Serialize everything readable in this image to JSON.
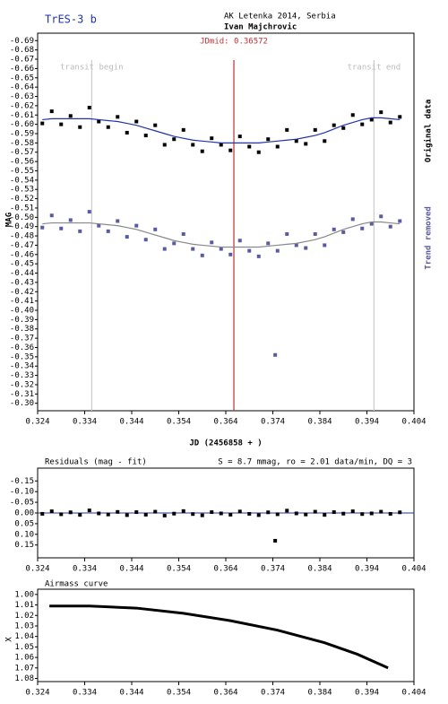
{
  "chart_data": [
    {
      "type": "scatter",
      "title": "TrES-3 b",
      "subtitle": "AK Letenka 2014, Serbia",
      "author": "Ivan Majchrovic",
      "xlabel": "JD (2456858 + )",
      "ylabel": "MAG",
      "markers": [
        {
          "label": "transit begin",
          "x": 0.3355,
          "color": "#cccccc"
        },
        {
          "label": "JDmid: 0.36572",
          "x": 0.36572,
          "color": "#c03030"
        },
        {
          "label": "transit end",
          "x": 0.3955,
          "color": "#cccccc"
        }
      ],
      "xlim": [
        0.324,
        0.404
      ],
      "xticks": [
        0.324,
        0.334,
        0.344,
        0.354,
        0.364,
        0.374,
        0.384,
        0.394,
        0.404
      ],
      "ylim": [
        -0.292,
        -0.698
      ],
      "yticks": [
        -0.69,
        -0.68,
        -0.67,
        -0.66,
        -0.65,
        -0.64,
        -0.63,
        -0.62,
        -0.61,
        {
          "value": -0.6,
          "label": "-0.60"
        },
        -0.59,
        -0.58,
        -0.57,
        -0.56,
        -0.55,
        -0.54,
        -0.53,
        -0.52,
        -0.51,
        {
          "value": -0.5,
          "label": "-0.50"
        },
        -0.49,
        -0.48,
        -0.47,
        -0.46,
        -0.45,
        -0.44,
        -0.43,
        -0.42,
        -0.41,
        {
          "value": -0.4,
          "label": "-0.40"
        },
        -0.39,
        -0.38,
        -0.37,
        -0.36,
        -0.35,
        -0.34,
        -0.33,
        -0.32,
        -0.31,
        {
          "value": -0.3,
          "label": "-0.30"
        }
      ],
      "series": [
        {
          "name": "Original data",
          "color": "#000000",
          "mode": "markers",
          "x": [
            0.325,
            0.327,
            0.329,
            0.331,
            0.333,
            0.335,
            0.337,
            0.339,
            0.341,
            0.343,
            0.345,
            0.347,
            0.349,
            0.351,
            0.353,
            0.355,
            0.357,
            0.359,
            0.361,
            0.363,
            0.365,
            0.367,
            0.369,
            0.371,
            0.373,
            0.375,
            0.377,
            0.379,
            0.381,
            0.383,
            0.385,
            0.387,
            0.389,
            0.391,
            0.393,
            0.395,
            0.397,
            0.399,
            0.401
          ],
          "values": [
            -0.601,
            -0.614,
            -0.6,
            -0.609,
            -0.597,
            -0.618,
            -0.603,
            -0.597,
            -0.608,
            -0.591,
            -0.603,
            -0.588,
            -0.599,
            -0.578,
            -0.584,
            -0.594,
            -0.578,
            -0.571,
            -0.585,
            -0.578,
            -0.572,
            -0.587,
            -0.576,
            -0.57,
            -0.584,
            -0.576,
            -0.594,
            -0.582,
            -0.579,
            -0.594,
            -0.582,
            -0.599,
            -0.596,
            -0.61,
            -0.6,
            -0.605,
            -0.613,
            -0.602,
            -0.608
          ]
        },
        {
          "color": "#2233aa",
          "mode": "line",
          "x": [
            0.325,
            0.327,
            0.329,
            0.331,
            0.333,
            0.335,
            0.337,
            0.339,
            0.341,
            0.343,
            0.345,
            0.347,
            0.349,
            0.351,
            0.353,
            0.355,
            0.357,
            0.359,
            0.361,
            0.363,
            0.365,
            0.367,
            0.369,
            0.371,
            0.373,
            0.375,
            0.377,
            0.379,
            0.381,
            0.383,
            0.385,
            0.387,
            0.389,
            0.391,
            0.393,
            0.395,
            0.397,
            0.399,
            0.401
          ],
          "values": [
            -0.605,
            -0.606,
            -0.606,
            -0.606,
            -0.606,
            -0.606,
            -0.605,
            -0.604,
            -0.603,
            -0.601,
            -0.599,
            -0.596,
            -0.593,
            -0.59,
            -0.587,
            -0.585,
            -0.583,
            -0.582,
            -0.581,
            -0.58,
            -0.58,
            -0.58,
            -0.58,
            -0.58,
            -0.581,
            -0.582,
            -0.583,
            -0.584,
            -0.586,
            -0.588,
            -0.591,
            -0.595,
            -0.599,
            -0.602,
            -0.605,
            -0.607,
            -0.607,
            -0.606,
            -0.605
          ]
        },
        {
          "name": "Trend removed",
          "color": "#5a5aa0",
          "mode": "markers",
          "x": [
            0.325,
            0.327,
            0.329,
            0.331,
            0.333,
            0.335,
            0.337,
            0.339,
            0.341,
            0.343,
            0.345,
            0.347,
            0.349,
            0.351,
            0.353,
            0.355,
            0.357,
            0.359,
            0.361,
            0.363,
            0.365,
            0.367,
            0.369,
            0.371,
            0.373,
            0.3745,
            0.375,
            0.377,
            0.379,
            0.381,
            0.383,
            0.385,
            0.387,
            0.389,
            0.391,
            0.393,
            0.395,
            0.397,
            0.399,
            0.401
          ],
          "values": [
            -0.489,
            -0.502,
            -0.488,
            -0.497,
            -0.485,
            -0.506,
            -0.491,
            -0.485,
            -0.496,
            -0.479,
            -0.491,
            -0.476,
            -0.487,
            -0.466,
            -0.472,
            -0.482,
            -0.466,
            -0.459,
            -0.473,
            -0.466,
            -0.46,
            -0.475,
            -0.464,
            -0.458,
            -0.472,
            -0.352,
            -0.464,
            -0.482,
            -0.47,
            -0.467,
            -0.482,
            -0.47,
            -0.487,
            -0.484,
            -0.498,
            -0.488,
            -0.493,
            -0.501,
            -0.49,
            -0.496
          ]
        },
        {
          "color": "#888888",
          "mode": "line",
          "x": [
            0.325,
            0.327,
            0.329,
            0.331,
            0.333,
            0.335,
            0.337,
            0.339,
            0.341,
            0.343,
            0.345,
            0.347,
            0.349,
            0.351,
            0.353,
            0.355,
            0.357,
            0.359,
            0.361,
            0.363,
            0.365,
            0.367,
            0.369,
            0.371,
            0.373,
            0.375,
            0.377,
            0.379,
            0.381,
            0.383,
            0.385,
            0.387,
            0.389,
            0.391,
            0.393,
            0.395,
            0.397,
            0.399,
            0.401
          ],
          "values": [
            -0.493,
            -0.494,
            -0.494,
            -0.494,
            -0.494,
            -0.494,
            -0.493,
            -0.492,
            -0.491,
            -0.489,
            -0.487,
            -0.484,
            -0.481,
            -0.478,
            -0.475,
            -0.473,
            -0.471,
            -0.47,
            -0.469,
            -0.468,
            -0.468,
            -0.468,
            -0.468,
            -0.468,
            -0.469,
            -0.47,
            -0.471,
            -0.472,
            -0.474,
            -0.476,
            -0.479,
            -0.483,
            -0.487,
            -0.49,
            -0.493,
            -0.495,
            -0.495,
            -0.494,
            -0.493
          ]
        }
      ]
    },
    {
      "type": "scatter",
      "title": "Residuals (mag - fit)",
      "annotation": "S = 8.7 mmag, ro = 2.01 data/min, DQ = 3",
      "zero_line_color": "#2233aa",
      "xlim": [
        0.324,
        0.404
      ],
      "xticks": [
        0.324,
        0.334,
        0.344,
        0.354,
        0.364,
        0.374,
        0.384,
        0.394,
        0.404
      ],
      "ylim": [
        0.21,
        -0.21
      ],
      "yticks": [
        -0.15,
        {
          "value": -0.1,
          "label": "-0.10"
        },
        -0.05,
        {
          "value": 0,
          "label": "0.00"
        },
        0.05,
        {
          "value": 0.1,
          "label": "0.10"
        },
        0.15
      ],
      "series": [
        {
          "color": "#000000",
          "mode": "markers",
          "x": [
            0.325,
            0.327,
            0.329,
            0.331,
            0.333,
            0.335,
            0.337,
            0.339,
            0.341,
            0.343,
            0.345,
            0.347,
            0.349,
            0.351,
            0.353,
            0.355,
            0.357,
            0.359,
            0.361,
            0.363,
            0.365,
            0.367,
            0.369,
            0.371,
            0.373,
            0.3745,
            0.375,
            0.377,
            0.379,
            0.381,
            0.383,
            0.385,
            0.387,
            0.389,
            0.391,
            0.393,
            0.395,
            0.397,
            0.399,
            0.401
          ],
          "values": [
            0.004,
            -0.008,
            0.006,
            -0.003,
            0.009,
            -0.012,
            0.002,
            0.007,
            -0.005,
            0.01,
            -0.004,
            0.008,
            -0.006,
            0.012,
            0.003,
            -0.009,
            0.005,
            0.011,
            -0.004,
            0.002,
            0.008,
            -0.007,
            0.004,
            0.01,
            -0.003,
            0.13,
            0.006,
            -0.011,
            0.002,
            0.007,
            -0.006,
            0.009,
            -0.004,
            0.003,
            -0.008,
            0.005,
            0.002,
            -0.006,
            0.004,
            -0.003
          ]
        }
      ]
    },
    {
      "type": "line",
      "title": "Airmass curve",
      "ylabel": "X",
      "xlim": [
        0.324,
        0.404
      ],
      "xticks": [
        0.324,
        0.334,
        0.344,
        0.354,
        0.364,
        0.374,
        0.384,
        0.394,
        0.404
      ],
      "ylim": [
        1.083,
        0.995
      ],
      "yticks": [
        {
          "value": 1,
          "label": "1.00"
        },
        1.01,
        1.02,
        1.03,
        1.04,
        1.05,
        1.06,
        1.07,
        1.08
      ],
      "series": [
        {
          "color": "#000000",
          "mode": "line",
          "x": [
            0.3265,
            0.335,
            0.345,
            0.355,
            0.365,
            0.375,
            0.385,
            0.392,
            0.3985
          ],
          "values": [
            1.011,
            1.011,
            1.013,
            1.018,
            1.025,
            1.034,
            1.046,
            1.057,
            1.07
          ]
        }
      ]
    }
  ]
}
